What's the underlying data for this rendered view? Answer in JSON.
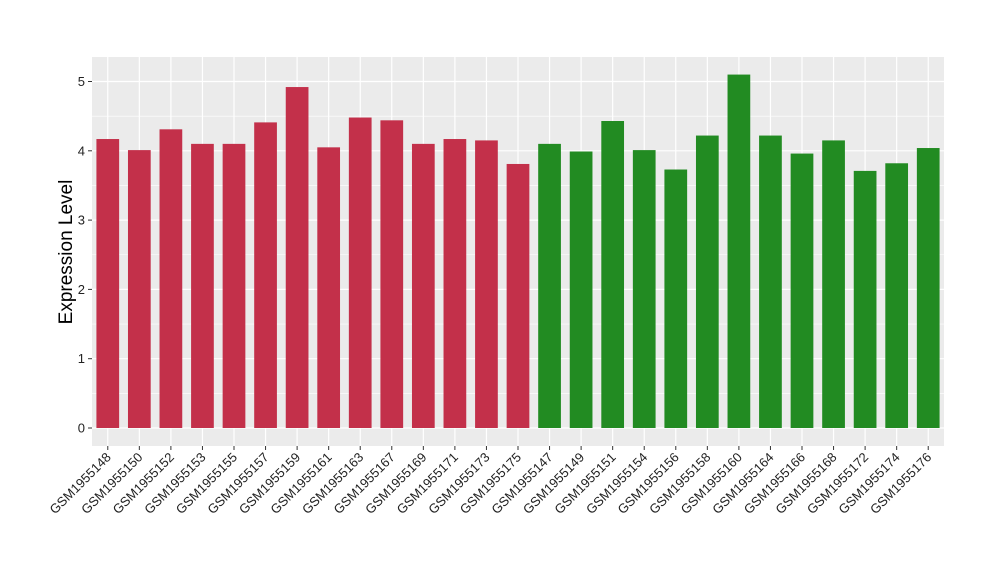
{
  "chart_data": {
    "type": "bar",
    "title": "",
    "xlabel": "",
    "ylabel": "Expression Level",
    "ylim": [
      0,
      5.3
    ],
    "yticks": [
      0,
      1,
      2,
      3,
      4,
      5
    ],
    "grid": true,
    "legend": "none",
    "categories": [
      "GSM1955148",
      "GSM1955150",
      "GSM1955152",
      "GSM1955153",
      "GSM1955155",
      "GSM1955157",
      "GSM1955159",
      "GSM1955161",
      "GSM1955163",
      "GSM1955167",
      "GSM1955169",
      "GSM1955171",
      "GSM1955173",
      "GSM1955175",
      "GSM1955147",
      "GSM1955149",
      "GSM1955151",
      "GSM1955154",
      "GSM1955156",
      "GSM1955158",
      "GSM1955160",
      "GSM1955164",
      "GSM1955166",
      "GSM1955168",
      "GSM1955172",
      "GSM1955174",
      "GSM1955176"
    ],
    "values": [
      4.17,
      4.01,
      4.31,
      4.1,
      4.1,
      4.41,
      4.92,
      4.05,
      4.48,
      4.44,
      4.1,
      4.17,
      4.15,
      3.81,
      4.1,
      3.99,
      4.43,
      4.01,
      3.73,
      4.22,
      5.1,
      4.22,
      3.96,
      4.15,
      3.71,
      3.82,
      4.04
    ],
    "bar_colors": [
      "#C3304A",
      "#C3304A",
      "#C3304A",
      "#C3304A",
      "#C3304A",
      "#C3304A",
      "#C3304A",
      "#C3304A",
      "#C3304A",
      "#C3304A",
      "#C3304A",
      "#C3304A",
      "#C3304A",
      "#C3304A",
      "#228B22",
      "#228B22",
      "#228B22",
      "#228B22",
      "#228B22",
      "#228B22",
      "#228B22",
      "#228B22",
      "#228B22",
      "#228B22",
      "#228B22",
      "#228B22",
      "#228B22"
    ],
    "panel_background": "#EBEBEB",
    "grid_color": "#FFFFFF"
  }
}
